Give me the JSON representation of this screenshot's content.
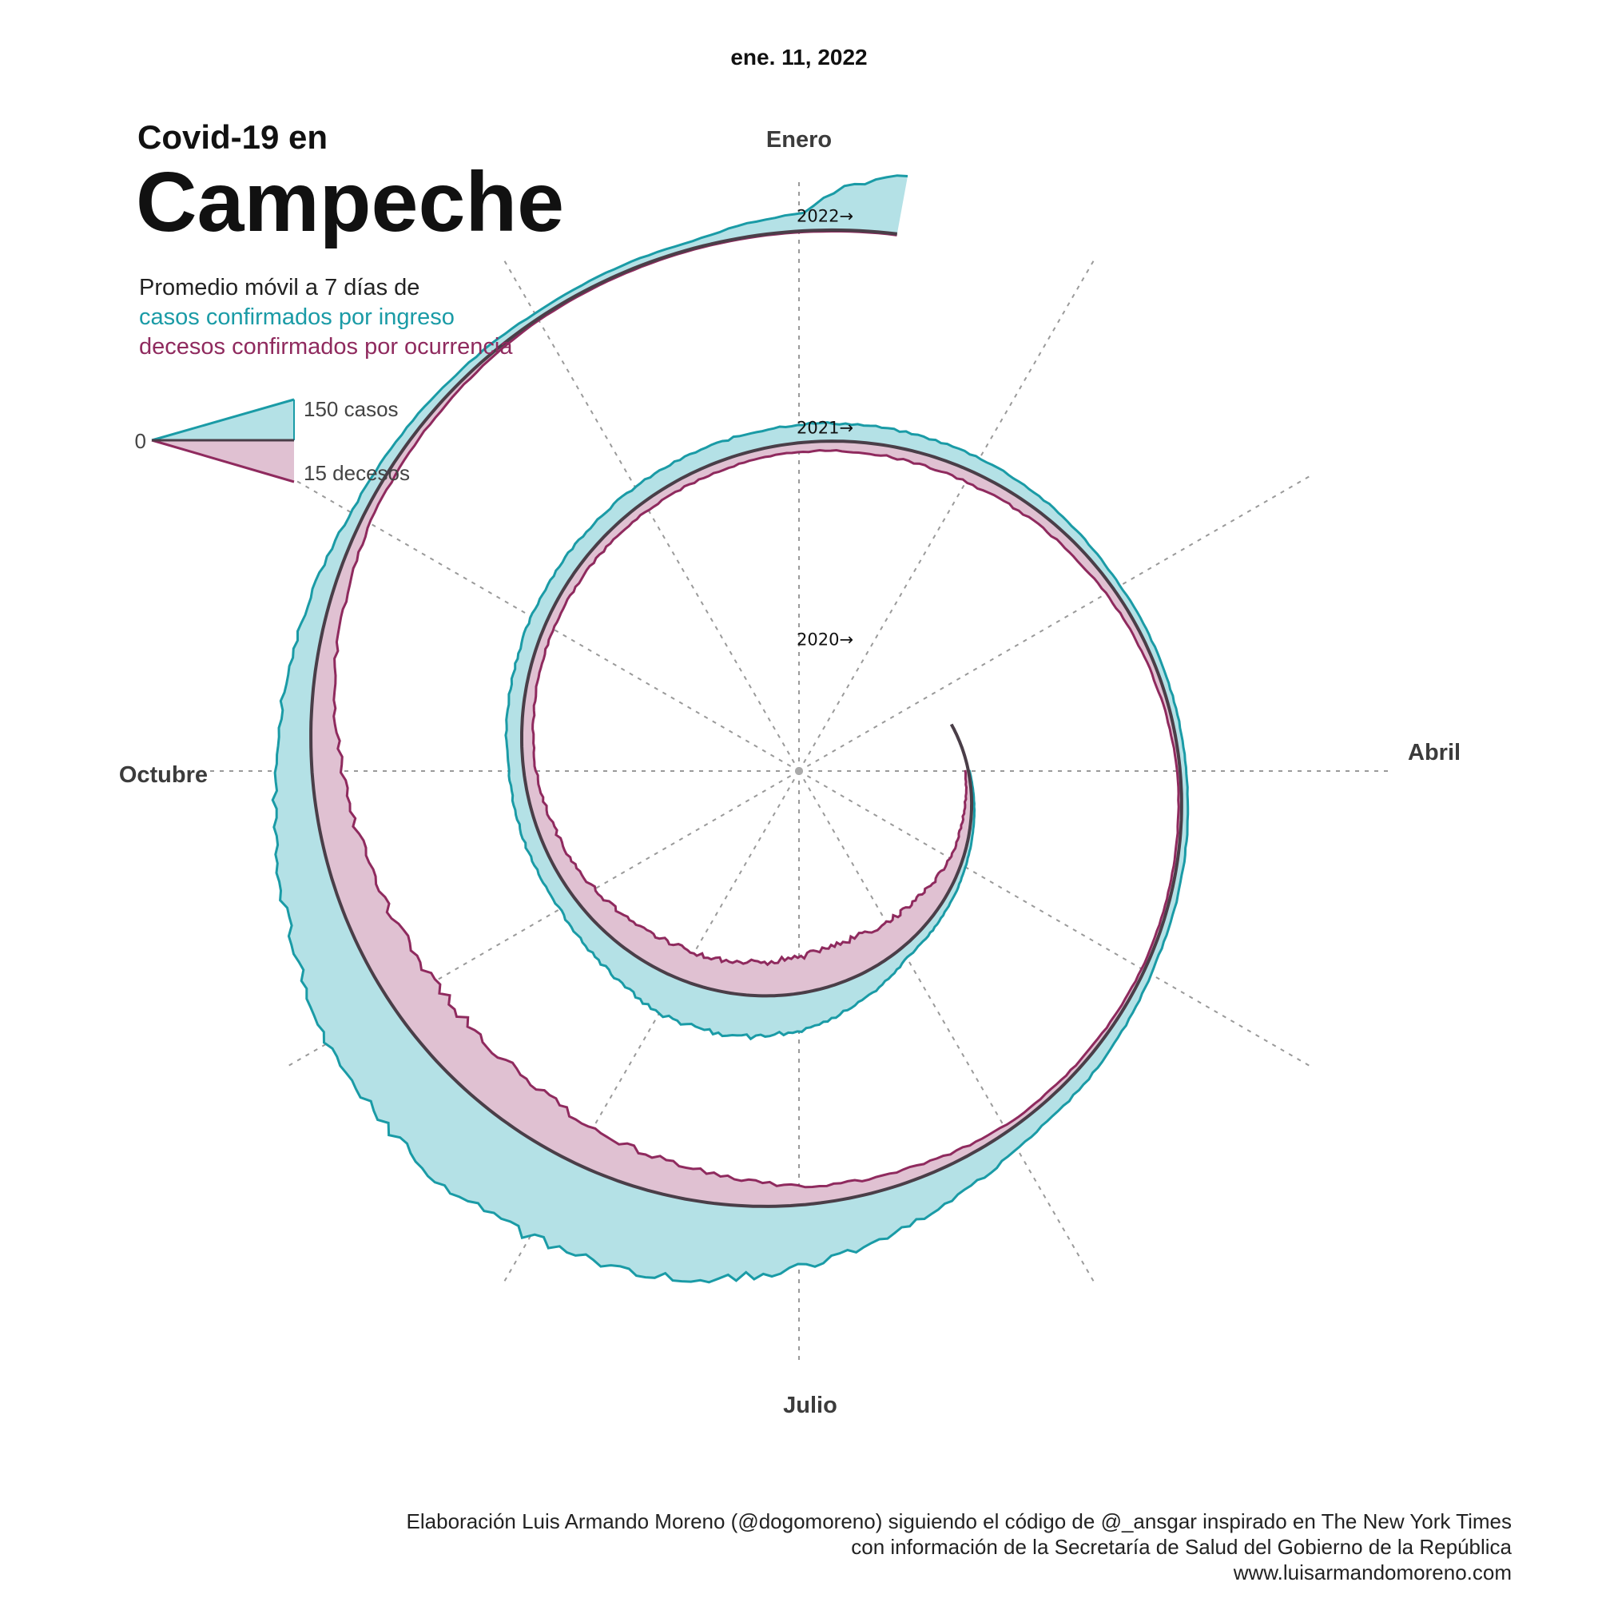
{
  "header": {
    "title_small": "Covid-19 en",
    "title_big": "Campeche",
    "subtitle_line1": "Promedio móvil a 7 días de",
    "subtitle_cases": "casos confirmados por ingreso",
    "subtitle_deaths": "decesos confirmados por ocurrencia",
    "date": "ene. 11, 2022"
  },
  "legend": {
    "zero": "0",
    "cases": "150 casos",
    "deaths": "15 decesos"
  },
  "footer": {
    "line1": "Elaboración Luis Armando Moreno (@dogomoreno) siguiendo el código de @_ansgar inspirado en The New York Times",
    "line2": "con información de la Secretaría de Salud del Gobierno de la República",
    "line3": "www.luisarmandomoreno.com"
  },
  "colors": {
    "cases_fill": "#b4e1e6",
    "cases_line": "#1a9ba6",
    "deaths_fill": "#e0c1d2",
    "deaths_line": "#8f2a5e",
    "baseline": "#4a3e48",
    "spoke": "#9a9a9a"
  },
  "chart_data": {
    "type": "area",
    "layout": "spiral",
    "title": "Campeche",
    "subtitle": "Promedio móvil a 7 días de casos confirmados por ingreso / decesos confirmados por ocurrencia",
    "month_labels": [
      "Enero",
      "Abril",
      "Julio",
      "Octubre"
    ],
    "year_labels": [
      "2020→",
      "2021→",
      "2022→"
    ],
    "scale": {
      "cases": 150,
      "deaths": 15
    },
    "series": [
      {
        "name": "casos confirmados por ingreso",
        "unit": "casos",
        "x": [
          "2020-04-01",
          "2020-05-01",
          "2020-06-01",
          "2020-06-15",
          "2020-07-01",
          "2020-07-15",
          "2020-08-01",
          "2020-08-15",
          "2020-09-01",
          "2020-10-01",
          "2020-11-01",
          "2020-12-01",
          "2021-01-01",
          "2021-02-01",
          "2021-03-01",
          "2021-04-01",
          "2021-05-01",
          "2021-06-01",
          "2021-06-15",
          "2021-07-01",
          "2021-07-15",
          "2021-08-01",
          "2021-08-15",
          "2021-09-01",
          "2021-09-15",
          "2021-10-01",
          "2021-10-15",
          "2021-11-01",
          "2021-12-01",
          "2021-12-20",
          "2022-01-01",
          "2022-01-05",
          "2022-01-11"
        ],
        "y": [
          2,
          8,
          18,
          40,
          60,
          70,
          65,
          45,
          30,
          25,
          26,
          28,
          30,
          25,
          12,
          10,
          12,
          30,
          60,
          100,
          130,
          140,
          140,
          120,
          90,
          60,
          40,
          20,
          10,
          12,
          30,
          70,
          100
        ]
      },
      {
        "name": "decesos confirmados por ocurrencia",
        "unit": "decesos",
        "x": [
          "2020-04-01",
          "2020-05-01",
          "2020-06-01",
          "2020-06-15",
          "2020-07-01",
          "2020-07-15",
          "2020-08-01",
          "2020-08-15",
          "2020-09-01",
          "2020-10-01",
          "2020-11-01",
          "2020-12-01",
          "2021-01-01",
          "2021-02-01",
          "2021-03-01",
          "2021-04-01",
          "2021-05-01",
          "2021-06-01",
          "2021-06-15",
          "2021-07-01",
          "2021-07-15",
          "2021-08-01",
          "2021-08-15",
          "2021-09-01",
          "2021-09-15",
          "2021-10-01",
          "2021-10-15",
          "2021-11-01",
          "2021-12-01",
          "2021-12-20",
          "2022-01-01",
          "2022-01-05",
          "2022-01-11"
        ],
        "y": [
          0.5,
          2,
          5,
          6,
          6,
          5.5,
          5,
          4.5,
          3.5,
          2,
          1.5,
          1.5,
          1.5,
          2,
          1.5,
          0.5,
          0.5,
          1,
          2,
          3,
          5,
          6.5,
          8,
          8,
          7,
          5,
          3,
          1.5,
          0.3,
          0.2,
          0.2,
          0.2,
          0.2
        ]
      }
    ]
  }
}
